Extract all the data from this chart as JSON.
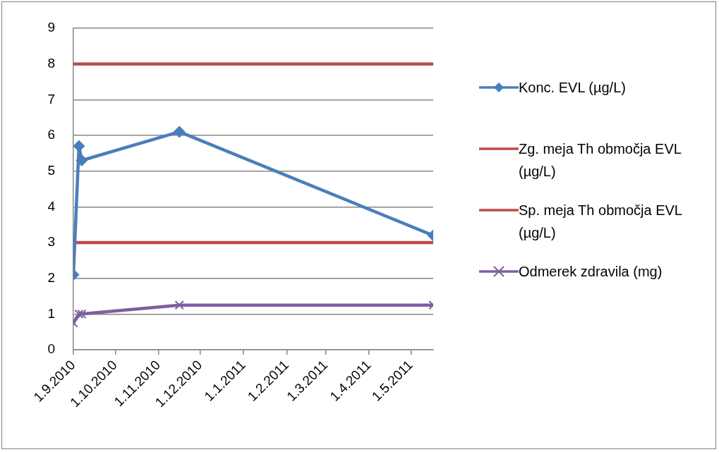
{
  "chart_data": {
    "type": "line",
    "series": [
      {
        "name": "Konc. EVL (µg/L)",
        "color": "#4a7ebb",
        "marker": "diamond",
        "x": [
          "2010-09-01",
          "2010-09-05",
          "2010-09-07",
          "2010-11-16",
          "2011-05-17"
        ],
        "values": [
          2.1,
          5.7,
          5.3,
          6.1,
          3.2
        ]
      },
      {
        "name": "Zg. meja Th območja EVL (µg/L)",
        "color": "#be4b48",
        "marker": "none",
        "x": [
          "2010-09-01",
          "2011-05-17"
        ],
        "values": [
          8,
          8
        ]
      },
      {
        "name": "Sp. meja Th območja EVL (µg/L)",
        "color": "#be4b48",
        "marker": "none",
        "x": [
          "2010-09-01",
          "2011-05-17"
        ],
        "values": [
          3,
          3
        ]
      },
      {
        "name": "Odmerek zdravila (mg)",
        "color": "#7d5fa0",
        "marker": "cross",
        "x": [
          "2010-09-01",
          "2010-09-05",
          "2010-09-07",
          "2010-11-16",
          "2011-05-17"
        ],
        "values": [
          0.75,
          1,
          1,
          1.25,
          1.25
        ]
      }
    ],
    "xlim": [
      "2010-09-01",
      "2011-05-17"
    ],
    "xticks": [
      {
        "value": "2010-09-01",
        "label": "1.9.2010"
      },
      {
        "value": "2010-10-01",
        "label": "1.10.2010"
      },
      {
        "value": "2010-11-01",
        "label": "1.11.2010"
      },
      {
        "value": "2010-12-01",
        "label": "1.12.2010"
      },
      {
        "value": "2011-01-01",
        "label": "1.1.2011"
      },
      {
        "value": "2011-02-01",
        "label": "1.2.2011"
      },
      {
        "value": "2011-03-01",
        "label": "1.3.2011"
      },
      {
        "value": "2011-04-01",
        "label": "1.4.2011"
      },
      {
        "value": "2011-05-01",
        "label": "1.5.2011"
      }
    ],
    "ylim": [
      0,
      9
    ],
    "yticks": [
      0,
      1,
      2,
      3,
      4,
      5,
      6,
      7,
      8,
      9
    ],
    "grid": "y",
    "legend": "right",
    "line_style": "solid"
  }
}
